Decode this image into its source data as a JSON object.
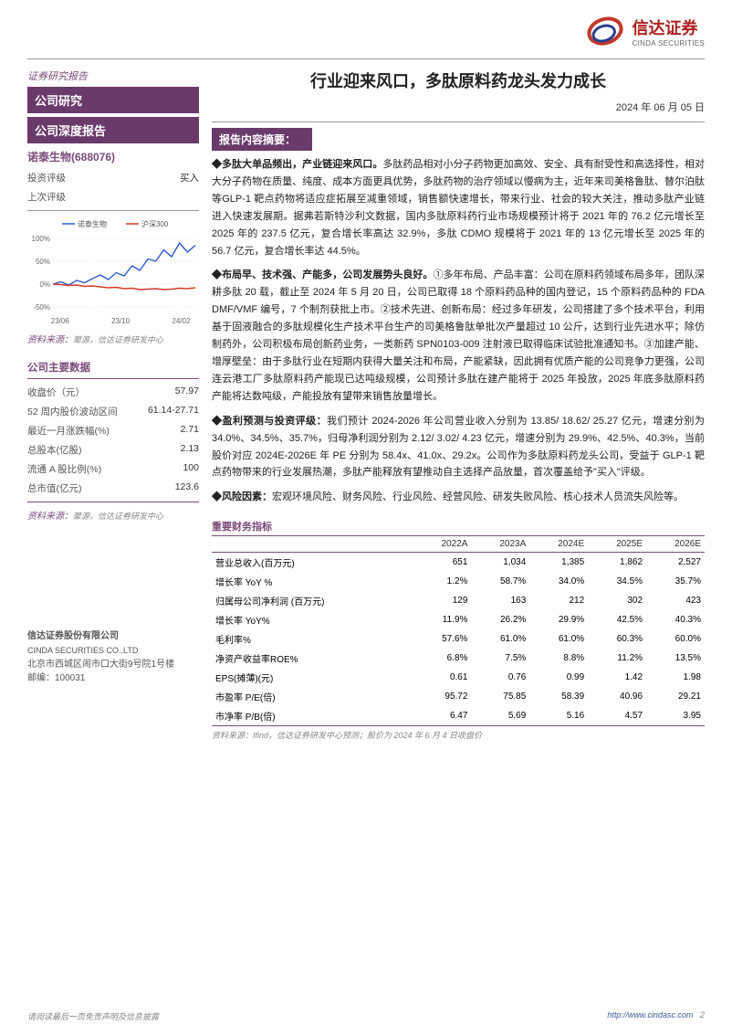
{
  "brand": {
    "name_zh": "信达证券",
    "name_en": "CINDA SECURITIES",
    "logo_colors": {
      "red": "#c0392b",
      "blue": "#2c3e8f",
      "text": "#b02020"
    }
  },
  "sidebar": {
    "report_type": "证券研究报告",
    "section1": "公司研究",
    "section2": "公司深度报告",
    "ticker": "诺泰生物(688076)",
    "rating_rows": [
      {
        "k": "投资评级",
        "v": "买入"
      },
      {
        "k": "上次评级",
        "v": ""
      }
    ],
    "chart": {
      "type": "line",
      "legend": [
        "诺泰生物",
        "沪深300"
      ],
      "legend_colors": [
        "#2a5ad0",
        "#d03a2a"
      ],
      "x_labels": [
        "23/06",
        "23/10",
        "24/02"
      ],
      "y_ticks": [
        "-50%",
        "0%",
        "50%",
        "100%"
      ],
      "ylim": [
        -60,
        120
      ],
      "grid_color": "#dddddd",
      "background": "#ffffff",
      "series": [
        {
          "name": "诺泰生物",
          "color": "#2a5ad0",
          "values": [
            0,
            5,
            -2,
            8,
            3,
            12,
            20,
            10,
            25,
            18,
            40,
            30,
            55,
            50,
            75,
            60,
            90,
            70,
            85
          ]
        },
        {
          "name": "沪深300",
          "color": "#d03a2a",
          "values": [
            0,
            -1,
            -3,
            -2,
            -5,
            -4,
            -6,
            -8,
            -7,
            -10,
            -9,
            -12,
            -11,
            -10,
            -12,
            -11,
            -9,
            -10,
            -8
          ]
        }
      ]
    },
    "chart_src_label": "资料来源：",
    "chart_src": "聚源，信达证券研发中心",
    "keydata_header": "公司主要数据",
    "keydata_rows": [
      {
        "k": "收盘价（元）",
        "v": "57.97"
      },
      {
        "k": "52 周内股价波动区间",
        "v": "61.14-27.71"
      },
      {
        "k": "最近一月涨跌幅(%)",
        "v": "2.71"
      },
      {
        "k": "总股本(亿股)",
        "v": "2.13"
      },
      {
        "k": "流通 A 股比例(%)",
        "v": "100"
      },
      {
        "k": "总市值(亿元)",
        "v": "123.6"
      }
    ],
    "keydata_src_label": "资料来源：",
    "keydata_src": "聚源，信达证券研发中心",
    "company": {
      "zh": "信达证券股份有限公司",
      "en": "CINDA SECURITIES CO.,LTD",
      "addr": "北京市西城区闹市口大街9号院1号楼",
      "post": "邮编：100031"
    }
  },
  "main": {
    "title": "行业迎来风口，多肽原料药龙头发力成长",
    "date": "2024 年 06 月 05 日",
    "summary_header": "报告内容摘要：",
    "paras": [
      {
        "lead": "◆多肽大单品频出，产业链迎来风口。",
        "text": "多肽药品相对小分子药物更加高效、安全、具有耐受性和高选择性，相对大分子药物在质量、纯度、成本方面更具优势，多肽药物的治疗领域以慢病为主，近年来司美格鲁肽、替尔泊肽等GLP-1 靶点药物将适应症拓展至减重领域，销售额快速增长，带来行业、社会的较大关注，推动多肽产业链进入快速发展期。据弗若斯特沙利文数据，国内多肽原料药行业市场规模预计将于 2021 年的 76.2 亿元增长至 2025 年的 237.5 亿元，复合增长率高达 32.9%，多肽 CDMO 规模将于 2021 年的 13 亿元增长至 2025 年的 56.7 亿元，复合增长率达 44.5%。"
      },
      {
        "lead": "◆布局早、技术强、产能多，公司发展势头良好。",
        "text": "①多年布局、产品丰富：公司在原料药领域布局多年，团队深耕多肽 20 载，截止至 2024 年 5 月 20 日，公司已取得 18 个原料药品种的国内登记，15 个原料药品种的 FDA DMF/VMF 编号，7 个制剂获批上市。②技术先进、创新布局：经过多年研发，公司搭建了多个技术平台，利用基于固液融合的多肽规模化生产技术平台生产的司美格鲁肽单批次产量超过 10 公斤，达到行业先进水平；除仿制药外，公司积极布局创新药业务，一类新药 SPN0103-009 注射液已取得临床试验批准通知书。③加建产能、增厚壁垒：由于多肽行业在短期内获得大量关注和布局，产能紧缺，因此拥有优质产能的公司竞争力更强，公司连云港工厂多肽原料药产能现已达吨级规模，公司预计多肽在建产能将于 2025 年投放，2025 年底多肽原料药产能将达数吨级，产能投放有望带来销售放量增长。"
      },
      {
        "lead": "◆盈利预测与投资评级：",
        "text": "我们预计 2024-2026 年公司营业收入分别为 13.85/ 18.62/ 25.27 亿元，增速分别为 34.0%、34.5%、35.7%，归母净利润分别为 2.12/ 3.02/ 4.23 亿元，增速分别为 29.9%、42.5%、40.3%，当前股价对应 2024E-2026E 年 PE 分别为 58.4x、41.0x、29.2x。公司作为多肽原料药龙头公司，受益于 GLP-1 靶点药物带来的行业发展热潮，多肽产能释放有望推动自主选择产品放量，首次覆盖给予\"买入\"评级。"
      },
      {
        "lead": "◆风险因素：",
        "text": "宏观环境风险、财务风险、行业风险、经营风险、研发失败风险、核心技术人员流失风险等。"
      }
    ],
    "fin_header": "重要财务指标",
    "fin_columns": [
      "",
      "2022A",
      "2023A",
      "2024E",
      "2025E",
      "2026E"
    ],
    "fin_rows": [
      [
        "营业总收入(百万元)",
        "651",
        "1,034",
        "1,385",
        "1,862",
        "2,527"
      ],
      [
        "增长率 YoY %",
        "1.2%",
        "58.7%",
        "34.0%",
        "34.5%",
        "35.7%"
      ],
      [
        "归属母公司净利润 (百万元)",
        "129",
        "163",
        "212",
        "302",
        "423"
      ],
      [
        "增长率 YoY%",
        "11.9%",
        "26.2%",
        "29.9%",
        "42.5%",
        "40.3%"
      ],
      [
        "毛利率%",
        "57.6%",
        "61.0%",
        "61.0%",
        "60.3%",
        "60.0%"
      ],
      [
        "净资产收益率ROE%",
        "6.8%",
        "7.5%",
        "8.8%",
        "11.2%",
        "13.5%"
      ],
      [
        "EPS(摊薄)(元)",
        "0.61",
        "0.76",
        "0.99",
        "1.42",
        "1.98"
      ],
      [
        "市盈率 P/E(倍)",
        "95.72",
        "75.85",
        "58.39",
        "40.96",
        "29.21"
      ],
      [
        "市净率 P/B(倍)",
        "6.47",
        "5.69",
        "5.16",
        "4.57",
        "3.95"
      ]
    ],
    "fin_src": "资料来源：Ifind，信达证券研发中心预测；股价为 2024 年 6 月 4 日收盘价"
  },
  "footer": {
    "disclaimer": "请阅读最后一页免责声明及信息披露",
    "url": "http://www.cindasc.com",
    "page": "2"
  }
}
